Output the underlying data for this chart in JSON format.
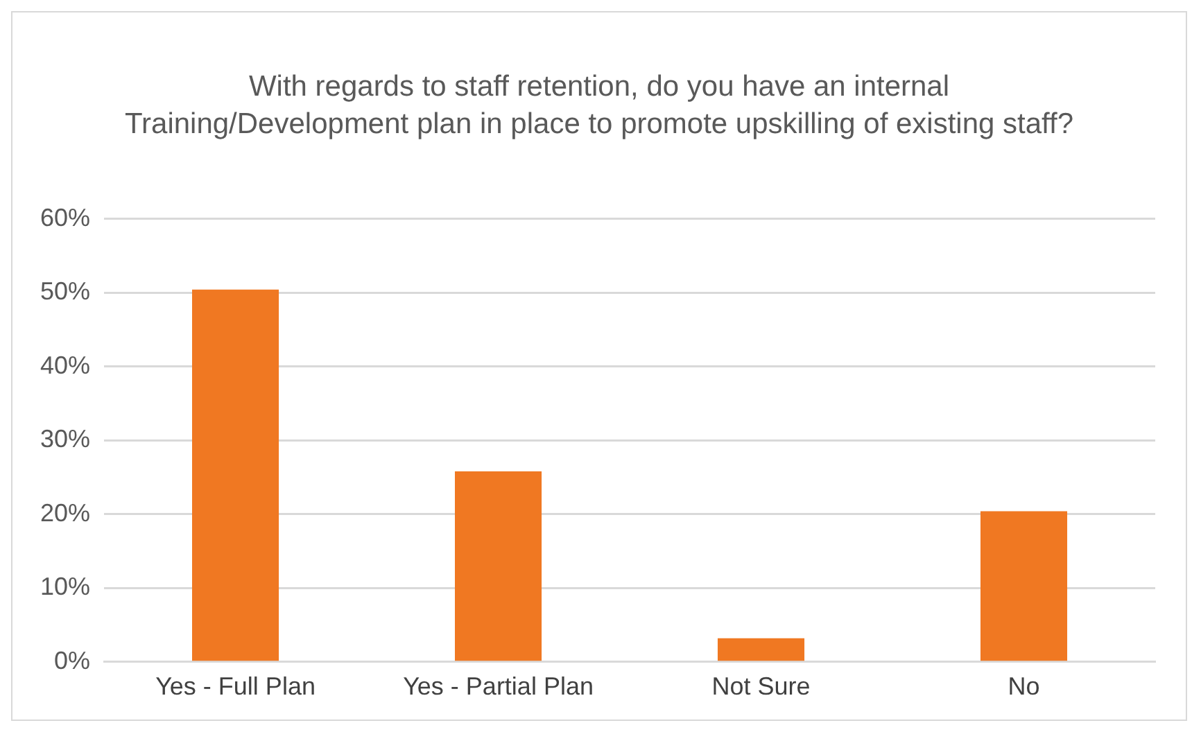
{
  "chart_data": {
    "type": "bar",
    "title": "With regards to staff retention, do you have an internal Training/Development plan in place to promote upskilling of existing staff?",
    "categories": [
      "Yes - Full Plan",
      "Yes - Partial Plan",
      "Not Sure",
      "No"
    ],
    "values": [
      50.4,
      25.8,
      3.2,
      20.4
    ],
    "color": "#f07822",
    "ylim": [
      0,
      60
    ],
    "yticks": [
      {
        "value": 0,
        "label": "0%"
      },
      {
        "value": 10,
        "label": "10%"
      },
      {
        "value": 20,
        "label": "20%"
      },
      {
        "value": 30,
        "label": "30%"
      },
      {
        "value": 40,
        "label": "40%"
      },
      {
        "value": 50,
        "label": "50%"
      },
      {
        "value": 60,
        "label": "60%"
      }
    ],
    "grid": "y",
    "legend": false
  }
}
